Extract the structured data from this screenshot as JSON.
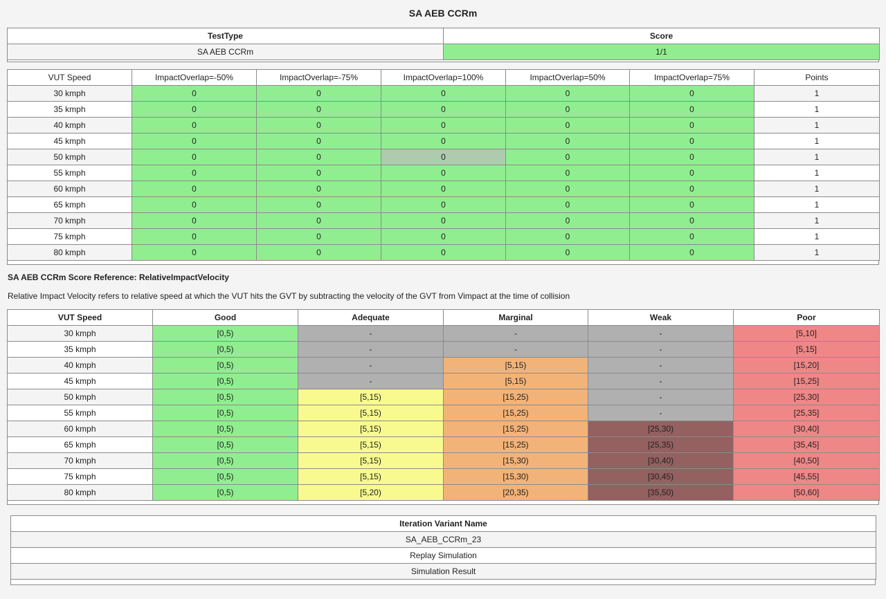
{
  "page": {
    "title": "SA AEB CCRm"
  },
  "summary": {
    "headers": [
      "TestType",
      "Score"
    ],
    "row": {
      "test_type": "SA AEB CCRm",
      "score": "1/1"
    }
  },
  "results": {
    "headers": [
      "VUT Speed",
      "ImpactOverlap=-50%",
      "ImpactOverlap=-75%",
      "ImpactOverlap=100%",
      "ImpactOverlap=50%",
      "ImpactOverlap=75%",
      "Points"
    ],
    "rows": [
      {
        "speed": "30 kmph",
        "values": [
          "0",
          "0",
          "0",
          "0",
          "0"
        ],
        "points": "1"
      },
      {
        "speed": "35 kmph",
        "values": [
          "0",
          "0",
          "0",
          "0",
          "0"
        ],
        "points": "1"
      },
      {
        "speed": "40 kmph",
        "values": [
          "0",
          "0",
          "0",
          "0",
          "0"
        ],
        "points": "1"
      },
      {
        "speed": "45 kmph",
        "values": [
          "0",
          "0",
          "0",
          "0",
          "0"
        ],
        "points": "1"
      },
      {
        "speed": "50 kmph",
        "values": [
          "0",
          "0",
          "0",
          "0",
          "0"
        ],
        "points": "1"
      },
      {
        "speed": "55 kmph",
        "values": [
          "0",
          "0",
          "0",
          "0",
          "0"
        ],
        "points": "1"
      },
      {
        "speed": "60 kmph",
        "values": [
          "0",
          "0",
          "0",
          "0",
          "0"
        ],
        "points": "1"
      },
      {
        "speed": "65 kmph",
        "values": [
          "0",
          "0",
          "0",
          "0",
          "0"
        ],
        "points": "1"
      },
      {
        "speed": "70 kmph",
        "values": [
          "0",
          "0",
          "0",
          "0",
          "0"
        ],
        "points": "1"
      },
      {
        "speed": "75 kmph",
        "values": [
          "0",
          "0",
          "0",
          "0",
          "0"
        ],
        "points": "1"
      },
      {
        "speed": "80 kmph",
        "values": [
          "0",
          "0",
          "0",
          "0",
          "0"
        ],
        "points": "1"
      }
    ]
  },
  "reference": {
    "title": "SA AEB CCRm Score Reference: RelativeImpactVelocity",
    "description": "Relative Impact Velocity refers to relative speed at which the VUT hits the GVT by subtracting the velocity of the GVT from Vimpact at the time of collision",
    "headers": [
      "VUT Speed",
      "Good",
      "Adequate",
      "Marginal",
      "Weak",
      "Poor"
    ],
    "rows": [
      {
        "speed": "30 kmph",
        "values": [
          "[0,5)",
          "-",
          "-",
          "-",
          "[5,10]"
        ]
      },
      {
        "speed": "35 kmph",
        "values": [
          "[0,5)",
          "-",
          "-",
          "-",
          "[5,15]"
        ]
      },
      {
        "speed": "40 kmph",
        "values": [
          "[0,5)",
          "-",
          "[5,15)",
          "-",
          "[15,20]"
        ]
      },
      {
        "speed": "45 kmph",
        "values": [
          "[0,5)",
          "-",
          "[5,15)",
          "-",
          "[15,25]"
        ]
      },
      {
        "speed": "50 kmph",
        "values": [
          "[0,5)",
          "[5,15)",
          "[15,25)",
          "-",
          "[25,30]"
        ]
      },
      {
        "speed": "55 kmph",
        "values": [
          "[0,5)",
          "[5,15)",
          "[15,25)",
          "-",
          "[25,35]"
        ]
      },
      {
        "speed": "60 kmph",
        "values": [
          "[0,5)",
          "[5,15)",
          "[15,25)",
          "[25,30)",
          "[30,40]"
        ]
      },
      {
        "speed": "65 kmph",
        "values": [
          "[0,5)",
          "[5,15)",
          "[15,25)",
          "[25,35)",
          "[35,45]"
        ]
      },
      {
        "speed": "70 kmph",
        "values": [
          "[0,5)",
          "[5,15)",
          "[15,30)",
          "[30,40)",
          "[40,50]"
        ]
      },
      {
        "speed": "75 kmph",
        "values": [
          "[0,5)",
          "[5,15)",
          "[15,30)",
          "[30,45)",
          "[45,55]"
        ]
      },
      {
        "speed": "80 kmph",
        "values": [
          "[0,5)",
          "[5,20)",
          "[20,35)",
          "[35,50)",
          "[50,60]"
        ]
      }
    ]
  },
  "iteration": {
    "header": "Iteration Variant Name",
    "variant": "SA_AEB_CCRm_23",
    "replay": "Replay Simulation",
    "result": "Simulation Result"
  },
  "colors": {
    "good": "#90ee90",
    "good_selected": "#aecbae",
    "na": "#b0b0b0",
    "adequate": "#f8fa90",
    "marginal": "#f2b378",
    "weak": "#946060",
    "poor": "#ef8787"
  }
}
